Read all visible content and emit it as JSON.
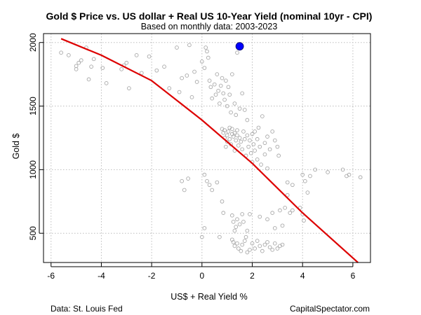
{
  "chart_data": {
    "type": "scatter",
    "title": "Gold $ Price vs. US dollar + Real US 10-Year Yield (nominal 10yr - CPI)",
    "subtitle": "Based on monthly data: 2003-2023",
    "xlabel": "US$ + Real Yield %",
    "ylabel": "Gold $",
    "xlim": [
      -6.3,
      6.7
    ],
    "ylim": [
      270,
      2070
    ],
    "x_ticks": [
      -6,
      -4,
      -2,
      0,
      2,
      4,
      6
    ],
    "y_ticks": [
      500,
      1000,
      1500,
      2000
    ],
    "grid": true,
    "scatter_series": {
      "name": "Monthly observations",
      "color": "#a8a8a8",
      "points": [
        [
          -5.6,
          1920
        ],
        [
          -5.3,
          1900
        ],
        [
          -5.0,
          1790
        ],
        [
          -5.0,
          1815
        ],
        [
          -4.9,
          1840
        ],
        [
          -4.8,
          1860
        ],
        [
          -4.6,
          1960
        ],
        [
          -4.5,
          1710
        ],
        [
          -4.4,
          1810
        ],
        [
          -4.3,
          1870
        ],
        [
          -3.95,
          1800
        ],
        [
          -3.8,
          1680
        ],
        [
          -3.2,
          1790
        ],
        [
          -3.1,
          1820
        ],
        [
          -3.0,
          1840
        ],
        [
          -2.9,
          1640
        ],
        [
          -2.6,
          1900
        ],
        [
          -2.4,
          1760
        ],
        [
          -2.1,
          1890
        ],
        [
          -1.8,
          1780
        ],
        [
          -1.5,
          1810
        ],
        [
          -1.3,
          1640
        ],
        [
          -1.0,
          1960
        ],
        [
          -0.9,
          1610
        ],
        [
          -0.8,
          1720
        ],
        [
          -0.6,
          1740
        ],
        [
          -0.5,
          1980
        ],
        [
          -0.4,
          1570
        ],
        [
          -0.3,
          1770
        ],
        [
          -0.2,
          1690
        ],
        [
          0.0,
          1850
        ],
        [
          0.1,
          1800
        ],
        [
          0.15,
          1960
        ],
        [
          0.2,
          1930
        ],
        [
          0.25,
          1880
        ],
        [
          0.3,
          1700
        ],
        [
          0.35,
          1650
        ],
        [
          0.4,
          1560
        ],
        [
          0.5,
          1670
        ],
        [
          0.55,
          1590
        ],
        [
          0.6,
          1750
        ],
        [
          0.65,
          1620
        ],
        [
          0.7,
          1520
        ],
        [
          0.75,
          1660
        ],
        [
          0.8,
          1720
        ],
        [
          0.85,
          1600
        ],
        [
          0.9,
          1550
        ],
        [
          0.95,
          1700
        ],
        [
          1.0,
          1500
        ],
        [
          1.05,
          1650
        ],
        [
          1.1,
          1590
        ],
        [
          1.15,
          1450
        ],
        [
          1.2,
          1750
        ],
        [
          1.3,
          1520
        ],
        [
          1.35,
          1430
        ],
        [
          1.4,
          1920
        ],
        [
          1.5,
          1480
        ],
        [
          1.6,
          1600
        ],
        [
          1.7,
          1470
        ],
        [
          1.8,
          1390
        ],
        [
          0.8,
          1320
        ],
        [
          0.85,
          1290
        ],
        [
          0.9,
          1250
        ],
        [
          0.9,
          1310
        ],
        [
          0.95,
          1180
        ],
        [
          1.0,
          1270
        ],
        [
          1.0,
          1220
        ],
        [
          1.05,
          1300
        ],
        [
          1.1,
          1330
        ],
        [
          1.1,
          1240
        ],
        [
          1.15,
          1200
        ],
        [
          1.2,
          1280
        ],
        [
          1.2,
          1320
        ],
        [
          1.25,
          1260
        ],
        [
          1.3,
          1150
        ],
        [
          1.3,
          1290
        ],
        [
          1.35,
          1230
        ],
        [
          1.4,
          1310
        ],
        [
          1.4,
          1270
        ],
        [
          1.45,
          1190
        ],
        [
          1.5,
          1250
        ],
        [
          1.55,
          1220
        ],
        [
          1.6,
          1160
        ],
        [
          1.65,
          1300
        ],
        [
          1.7,
          1240
        ],
        [
          1.75,
          1110
        ],
        [
          1.8,
          1270
        ],
        [
          1.85,
          1180
        ],
        [
          1.9,
          1230
        ],
        [
          1.95,
          1130
        ],
        [
          2.0,
          1280
        ],
        [
          2.05,
          1200
        ],
        [
          2.1,
          1300
        ],
        [
          2.1,
          1150
        ],
        [
          2.2,
          1240
        ],
        [
          2.25,
          1330
        ],
        [
          2.3,
          1180
        ],
        [
          2.4,
          1420
        ],
        [
          2.5,
          1210
        ],
        [
          2.5,
          1120
        ],
        [
          2.6,
          1260
        ],
        [
          2.7,
          1160
        ],
        [
          2.8,
          1300
        ],
        [
          2.9,
          1230
        ],
        [
          3.0,
          1180
        ],
        [
          3.05,
          1110
        ],
        [
          2.2,
          1080
        ],
        [
          2.35,
          1040
        ],
        [
          2.6,
          1010
        ],
        [
          2.0,
          1060
        ],
        [
          3.4,
          900
        ],
        [
          3.6,
          880
        ],
        [
          4.0,
          960
        ],
        [
          4.1,
          910
        ],
        [
          4.2,
          820
        ],
        [
          4.3,
          950
        ],
        [
          4.5,
          1000
        ],
        [
          5.0,
          980
        ],
        [
          5.6,
          1000
        ],
        [
          5.75,
          950
        ],
        [
          5.85,
          960
        ],
        [
          6.3,
          940
        ],
        [
          -0.8,
          910
        ],
        [
          -0.7,
          840
        ],
        [
          -0.55,
          930
        ],
        [
          0.1,
          960
        ],
        [
          0.2,
          910
        ],
        [
          0.3,
          880
        ],
        [
          0.4,
          840
        ],
        [
          0.6,
          900
        ],
        [
          0.8,
          750
        ],
        [
          0.85,
          660
        ],
        [
          1.2,
          640
        ],
        [
          1.25,
          590
        ],
        [
          1.3,
          520
        ],
        [
          1.35,
          550
        ],
        [
          1.4,
          610
        ],
        [
          1.5,
          570
        ],
        [
          1.6,
          650
        ],
        [
          1.65,
          590
        ],
        [
          1.75,
          470
        ],
        [
          1.8,
          520
        ],
        [
          1.2,
          450
        ],
        [
          1.25,
          430
        ],
        [
          1.3,
          400
        ],
        [
          1.4,
          420
        ],
        [
          1.45,
          380
        ],
        [
          1.55,
          360
        ],
        [
          1.6,
          410
        ],
        [
          1.7,
          440
        ],
        [
          1.8,
          350
        ],
        [
          1.9,
          370
        ],
        [
          2.0,
          420
        ],
        [
          2.1,
          380
        ],
        [
          2.2,
          440
        ],
        [
          2.3,
          400
        ],
        [
          2.4,
          360
        ],
        [
          2.5,
          410
        ],
        [
          2.6,
          430
        ],
        [
          2.7,
          390
        ],
        [
          2.8,
          370
        ],
        [
          2.9,
          420
        ],
        [
          3.0,
          380
        ],
        [
          3.1,
          400
        ],
        [
          3.2,
          410
        ],
        [
          0.0,
          470
        ],
        [
          0.1,
          540
        ],
        [
          0.7,
          470
        ],
        [
          1.9,
          650
        ],
        [
          2.3,
          630
        ],
        [
          2.6,
          610
        ],
        [
          2.8,
          660
        ],
        [
          3.1,
          680
        ],
        [
          3.3,
          700
        ],
        [
          3.5,
          660
        ],
        [
          3.6,
          680
        ],
        [
          3.9,
          700
        ],
        [
          4.0,
          650
        ],
        [
          4.05,
          600
        ],
        [
          3.2,
          560
        ],
        [
          2.9,
          540
        ],
        [
          3.4,
          800
        ]
      ]
    },
    "latest_point": {
      "name": "Latest",
      "x": 1.5,
      "y": 1970,
      "color": "#0000ff"
    },
    "fit_line": {
      "name": "Fitted curve",
      "color": "#dd0000",
      "points": [
        [
          -5.6,
          2030
        ],
        [
          -4.0,
          1900
        ],
        [
          -2.0,
          1700
        ],
        [
          0.0,
          1390
        ],
        [
          2.0,
          1050
        ],
        [
          4.0,
          660
        ],
        [
          6.2,
          270
        ]
      ]
    }
  },
  "footer": {
    "source": "Data: St. Louis Fed",
    "brand": "CapitalSpectator.com"
  }
}
